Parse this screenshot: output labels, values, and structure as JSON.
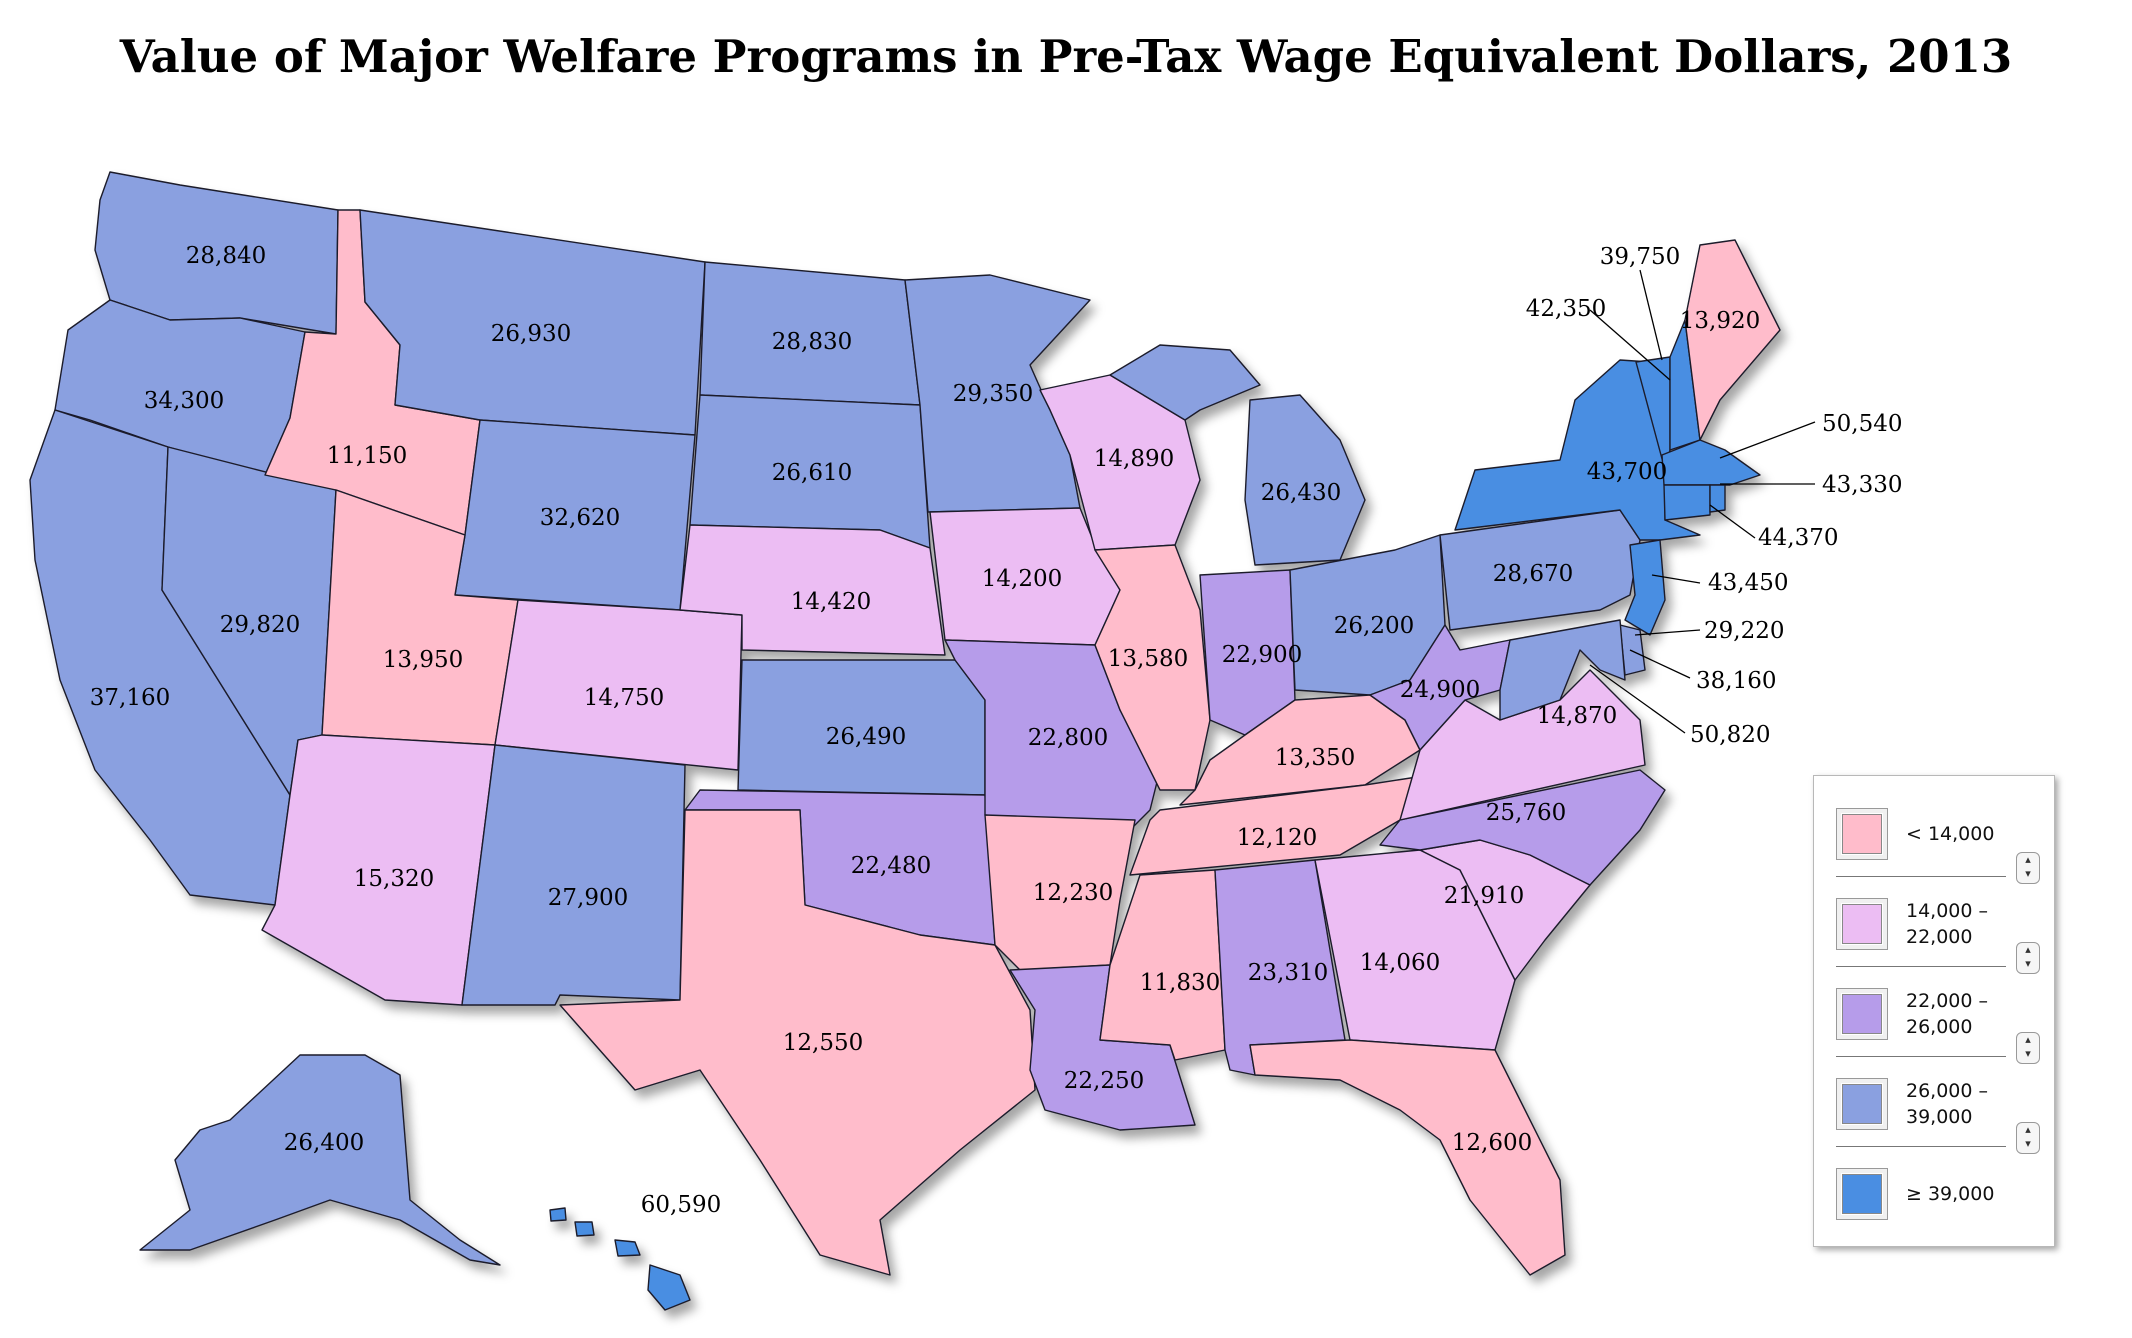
{
  "title": "Value of Major Welfare Programs in Pre-Tax Wage Equivalent Dollars, 2013",
  "colors": {
    "lt_14000": "#ffbccb",
    "14000_22000": "#ecbdf3",
    "22000_26000": "#b69cea",
    "26000_39000": "#8aa0e0",
    "ge_39000": "#4a8ee2"
  },
  "legend": {
    "items": [
      {
        "line1": "< 14,000",
        "line2": ""
      },
      {
        "line1": "14,000 –",
        "line2": "22,000"
      },
      {
        "line1": "22,000 –",
        "line2": "26,000"
      },
      {
        "line1": "26,000 –",
        "line2": "39,000"
      },
      {
        "line1": "≥ 39,000",
        "line2": ""
      }
    ],
    "stepper_icon": "up-down-stepper-icon"
  },
  "states": {
    "WA": "28,840",
    "OR": "34,300",
    "CA": "37,160",
    "NV": "29,820",
    "ID": "11,150",
    "MT": "26,930",
    "WY": "32,620",
    "UT": "13,950",
    "AZ": "15,320",
    "CO": "14,750",
    "NM": "27,900",
    "ND": "28,830",
    "SD": "26,610",
    "NE": "14,420",
    "KS": "26,490",
    "OK": "22,480",
    "TX": "12,550",
    "MN": "29,350",
    "IA": "14,200",
    "MO": "22,800",
    "AR": "12,230",
    "LA": "22,250",
    "WI": "14,890",
    "IL": "13,580",
    "MI": "26,430",
    "IN": "22,900",
    "OH": "26,200",
    "KY": "13,350",
    "TN": "12,120",
    "MS": "11,830",
    "AL": "23,310",
    "GA": "14,060",
    "FL": "12,600",
    "SC": "21,910",
    "NC": "25,760",
    "VA": "14,870",
    "WV": "24,900",
    "PA": "28,670",
    "NY": "43,700",
    "VT": "39,750",
    "NH": "42,350",
    "ME": "13,920",
    "MA": "50,540",
    "RI": "43,330",
    "CT": "44,370",
    "NJ": "43,450",
    "DE": "29,220",
    "MD": "38,160",
    "DC": "50,820",
    "AK": "26,400",
    "HI": "60,590"
  }
}
